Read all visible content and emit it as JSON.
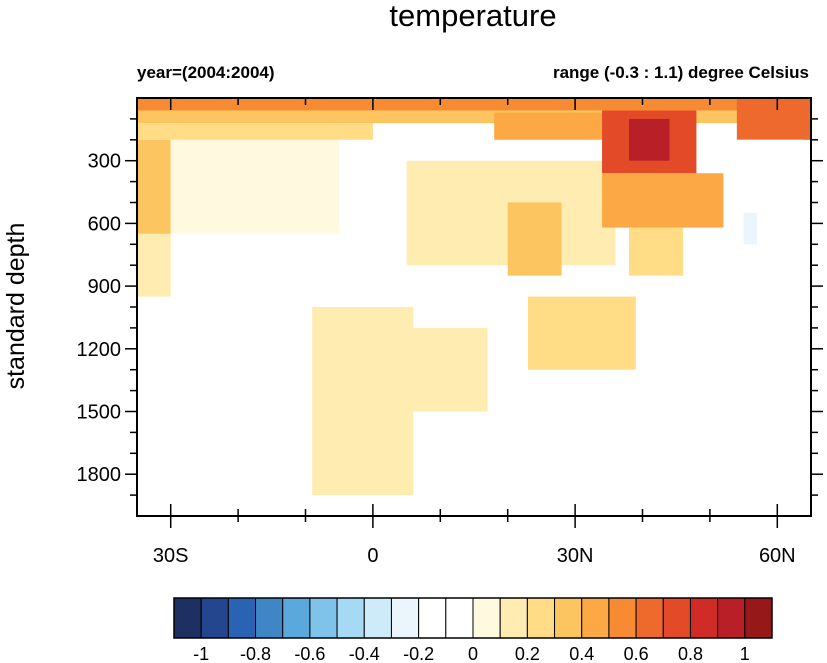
{
  "chart_data": {
    "type": "heatmap",
    "title": "temperature",
    "left_subtitle": "year=(2004:2004)",
    "right_subtitle": "range (-0.3 : 1.1) degree Celsius",
    "ylabel": "standard depth",
    "xlabel": "",
    "x_range_deg": [
      -35,
      65
    ],
    "y_range": [
      0,
      2000
    ],
    "y_reversed": true,
    "x_ticks": [
      {
        "value": -30,
        "label": "30S"
      },
      {
        "value": 0,
        "label": "0"
      },
      {
        "value": 30,
        "label": "30N"
      },
      {
        "value": 60,
        "label": "60N"
      }
    ],
    "y_ticks": [
      {
        "value": 300,
        "label": "300"
      },
      {
        "value": 600,
        "label": "600"
      },
      {
        "value": 900,
        "label": "900"
      },
      {
        "value": 1200,
        "label": "1200"
      },
      {
        "value": 1500,
        "label": "1500"
      },
      {
        "value": 1800,
        "label": "1800"
      }
    ],
    "colorbar": {
      "boundaries": [
        -1.1,
        -1.0,
        -0.9,
        -0.8,
        -0.7,
        -0.6,
        -0.5,
        -0.4,
        -0.3,
        -0.2,
        -0.1,
        0.0,
        0.1,
        0.2,
        0.3,
        0.4,
        0.5,
        0.6,
        0.7,
        0.8,
        0.9,
        1.0,
        1.1
      ],
      "colors": [
        "#1d3061",
        "#23468f",
        "#2a63b4",
        "#3f86c6",
        "#5ba8dd",
        "#7fc3ea",
        "#a6d9f4",
        "#cdebf8",
        "#eaf6fc",
        "#ffffff",
        "#ffffff",
        "#fff9e0",
        "#ffecb0",
        "#ffdc85",
        "#fdc55f",
        "#fba845",
        "#f68b33",
        "#ee6a2c",
        "#e34a28",
        "#d02b27",
        "#b81f26",
        "#971818"
      ],
      "labels": [
        {
          "value": -1.0,
          "label": "-1"
        },
        {
          "value": -0.8,
          "label": "-0.8"
        },
        {
          "value": -0.6,
          "label": "-0.6"
        },
        {
          "value": -0.4,
          "label": "-0.4"
        },
        {
          "value": -0.2,
          "label": "-0.2"
        },
        {
          "value": 0.0,
          "label": "0"
        },
        {
          "value": 0.2,
          "label": "0.2"
        },
        {
          "value": 0.4,
          "label": "0.4"
        },
        {
          "value": 0.6,
          "label": "0.6"
        },
        {
          "value": 0.8,
          "label": "0.8"
        },
        {
          "value": 1.0,
          "label": "1"
        }
      ]
    },
    "anomaly_regions": [
      {
        "lat": [
          -35,
          65
        ],
        "depth": [
          0,
          60
        ],
        "value": 0.55
      },
      {
        "lat": [
          -35,
          65
        ],
        "depth": [
          60,
          120
        ],
        "value": 0.35
      },
      {
        "lat": [
          -35,
          0
        ],
        "depth": [
          120,
          200
        ],
        "value": 0.2
      },
      {
        "lat": [
          18,
          38
        ],
        "depth": [
          70,
          200
        ],
        "value": 0.45
      },
      {
        "lat": [
          -35,
          -30
        ],
        "depth": [
          200,
          650
        ],
        "value": 0.35
      },
      {
        "lat": [
          -35,
          -30
        ],
        "depth": [
          650,
          950
        ],
        "value": 0.15
      },
      {
        "lat": [
          -30,
          -5
        ],
        "depth": [
          200,
          650
        ],
        "value": 0.05
      },
      {
        "lat": [
          5,
          36
        ],
        "depth": [
          300,
          800
        ],
        "value": 0.15
      },
      {
        "lat": [
          20,
          28
        ],
        "depth": [
          500,
          850
        ],
        "value": 0.3
      },
      {
        "lat": [
          34,
          48
        ],
        "depth": [
          60,
          360
        ],
        "value": 0.7
      },
      {
        "lat": [
          38,
          44
        ],
        "depth": [
          100,
          300
        ],
        "value": 0.95
      },
      {
        "lat": [
          34,
          52
        ],
        "depth": [
          360,
          620
        ],
        "value": 0.45
      },
      {
        "lat": [
          38,
          46
        ],
        "depth": [
          620,
          850
        ],
        "value": 0.25
      },
      {
        "lat": [
          54,
          65
        ],
        "depth": [
          0,
          200
        ],
        "value": 0.6
      },
      {
        "lat": [
          23,
          39
        ],
        "depth": [
          950,
          1300
        ],
        "value": 0.25
      },
      {
        "lat": [
          -9,
          6
        ],
        "depth": [
          1000,
          1900
        ],
        "value": 0.15
      },
      {
        "lat": [
          -4,
          17
        ],
        "depth": [
          1100,
          1500
        ],
        "value": 0.12
      },
      {
        "lat": [
          54,
          64
        ],
        "depth": [
          200,
          1300
        ],
        "value": -0.15
      },
      {
        "lat": [
          55,
          57
        ],
        "depth": [
          550,
          700
        ],
        "value": -0.25
      },
      {
        "lat": [
          50,
          58
        ],
        "depth": [
          1300,
          2000
        ],
        "value": -0.15
      }
    ]
  }
}
